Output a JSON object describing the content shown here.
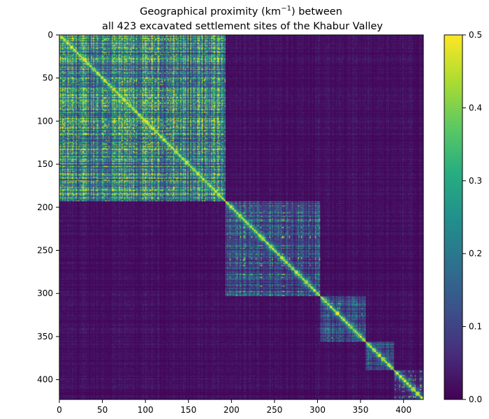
{
  "chart_data": {
    "type": "heatmap",
    "title_line1_prefix": "Geographical proximity (km",
    "title_line1_superscript": "−1",
    "title_line1_suffix": ") between",
    "title_line2": "all 423 excavated settlement sites of the Khabur Valley",
    "xlabel": "",
    "ylabel": "",
    "n_sites": 423,
    "xlim": [
      0,
      423
    ],
    "ylim": [
      423,
      0
    ],
    "x_ticks": [
      0,
      50,
      100,
      150,
      200,
      250,
      300,
      350,
      400
    ],
    "y_ticks": [
      0,
      50,
      100,
      150,
      200,
      250,
      300,
      350,
      400
    ],
    "colorbar": {
      "colormap": "viridis",
      "min": 0.0,
      "max": 0.5,
      "ticks": [
        0.0,
        0.1,
        0.2,
        0.3,
        0.4,
        0.5
      ],
      "tick_labels": [
        "0.0",
        "0.1",
        "0.2",
        "0.3",
        "0.4",
        "0.5"
      ]
    },
    "grid": false,
    "clusters": [
      {
        "start": 0,
        "end": 193,
        "within_level": 0.22,
        "bright_level": 0.5
      },
      {
        "start": 193,
        "end": 303,
        "within_level": 0.12,
        "bright_level": 0.45
      },
      {
        "start": 303,
        "end": 356,
        "within_level": 0.11,
        "bright_level": 0.45
      },
      {
        "start": 356,
        "end": 389,
        "within_level": 0.12,
        "bright_level": 0.5
      },
      {
        "start": 389,
        "end": 423,
        "within_level": 0.06,
        "bright_level": 0.5
      }
    ],
    "between_cluster_level": 0.02
  }
}
